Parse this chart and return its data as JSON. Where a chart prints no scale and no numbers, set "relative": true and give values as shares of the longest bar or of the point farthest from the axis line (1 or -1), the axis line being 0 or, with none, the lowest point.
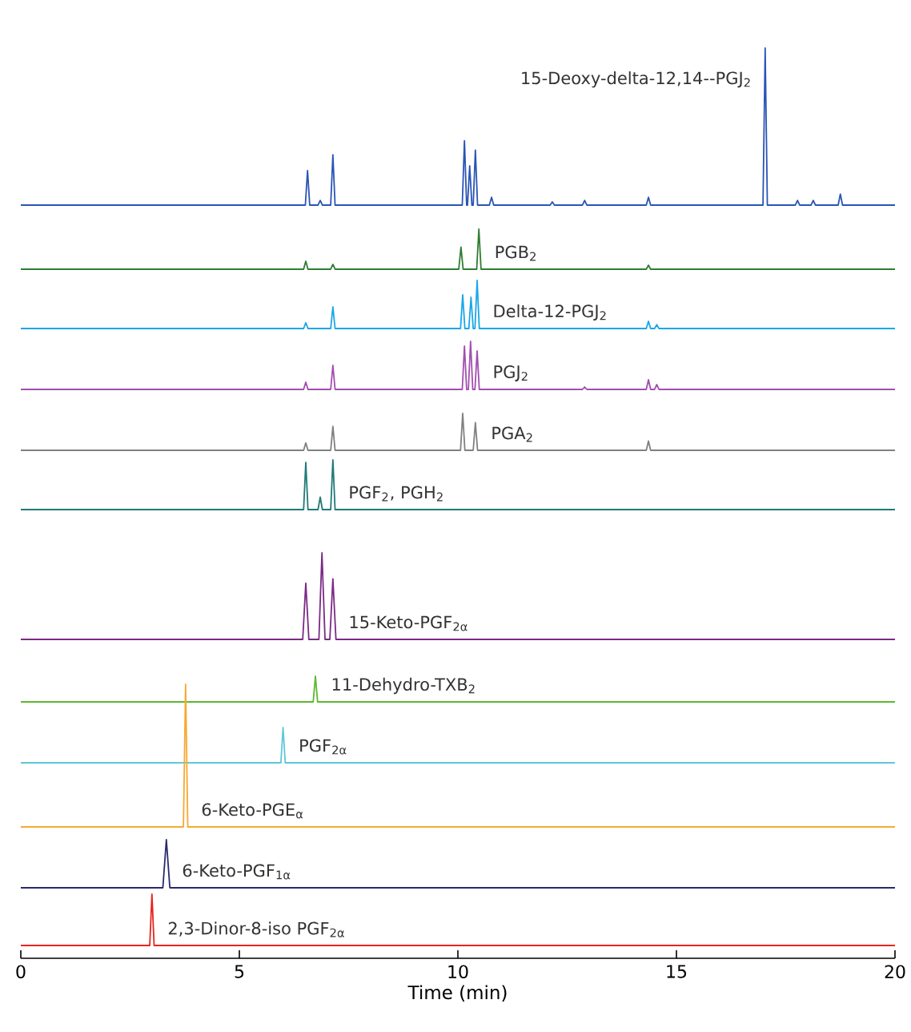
{
  "chart_data": [
    {
      "type": "line",
      "relative": true,
      "tick_labels": false,
      "xlim": [
        0,
        20
      ],
      "series": [
        {
          "name": "15-Deoxy-delta-12,14--PGJ$_{2}$",
          "color": "#2a55b5",
          "x": [
            0,
            6.51,
            6.56,
            6.61,
            6.8,
            6.85,
            6.9,
            7.09,
            7.14,
            7.19,
            10.1,
            10.15,
            10.2,
            10.22,
            10.27,
            10.32,
            10.35,
            10.4,
            10.45,
            10.72,
            10.77,
            10.82,
            12.11,
            12.16,
            12.21,
            12.85,
            12.9,
            12.95,
            14.31,
            14.36,
            14.41,
            16.98,
            17.03,
            17.08,
            17.72,
            17.77,
            17.82,
            18.08,
            18.13,
            18.18,
            18.7,
            18.75,
            18.8,
            20
          ],
          "values": [
            0,
            0,
            0.22,
            0,
            0,
            0.03,
            0,
            0,
            0.32,
            0,
            0,
            0.41,
            0,
            0,
            0.25,
            0,
            0,
            0.35,
            0,
            0,
            0.05,
            0,
            0,
            0.02,
            0,
            0,
            0.03,
            0,
            0,
            0.05,
            0,
            0,
            1,
            0,
            0,
            0.03,
            0,
            0,
            0.03,
            0,
            0,
            0.07,
            0,
            0
          ]
        }
      ]
    },
    {
      "type": "line",
      "relative": true,
      "tick_labels": false,
      "xlim": [
        0,
        20
      ],
      "series": [
        {
          "name": "PGB$_{2}$",
          "color": "#2e7d32",
          "x": [
            0,
            6.47,
            6.52,
            6.57,
            7.09,
            7.14,
            7.19,
            10.02,
            10.07,
            10.12,
            10.43,
            10.48,
            10.53,
            14.31,
            14.36,
            14.41,
            20
          ],
          "values": [
            0,
            0,
            0.2,
            0,
            0,
            0.12,
            0,
            0,
            0.55,
            0,
            0,
            1,
            0,
            0,
            0.1,
            0,
            0
          ]
        }
      ]
    },
    {
      "type": "line",
      "relative": true,
      "tick_labels": false,
      "xlim": [
        0,
        20
      ],
      "series": [
        {
          "name": "Delta-12-PGJ$_{2}$",
          "color": "#1aa7e8",
          "x": [
            0,
            6.47,
            6.52,
            6.57,
            7.09,
            7.14,
            7.19,
            10.06,
            10.11,
            10.16,
            10.25,
            10.3,
            10.35,
            10.39,
            10.44,
            10.49,
            14.31,
            14.36,
            14.41,
            14.5,
            14.55,
            14.6,
            20
          ],
          "values": [
            0,
            0,
            0.12,
            0,
            0,
            0.45,
            0,
            0,
            0.7,
            0,
            0,
            0.65,
            0,
            0,
            1,
            0,
            0,
            0.15,
            0,
            0,
            0.08,
            0,
            0
          ]
        }
      ]
    },
    {
      "type": "line",
      "relative": true,
      "tick_labels": false,
      "xlim": [
        0,
        20
      ],
      "series": [
        {
          "name": "PGJ$_{2}$",
          "color": "#a24fb0",
          "x": [
            0,
            6.47,
            6.52,
            6.57,
            7.09,
            7.14,
            7.19,
            10.1,
            10.15,
            10.2,
            10.24,
            10.29,
            10.34,
            10.39,
            10.44,
            10.49,
            12.85,
            12.9,
            12.95,
            14.31,
            14.36,
            14.41,
            14.5,
            14.55,
            14.6,
            20
          ],
          "values": [
            0,
            0,
            0.15,
            0,
            0,
            0.5,
            0,
            0,
            0.9,
            0,
            0,
            1,
            0,
            0,
            0.8,
            0,
            0,
            0.05,
            0,
            0,
            0.2,
            0,
            0,
            0.1,
            0,
            0
          ]
        }
      ]
    },
    {
      "type": "line",
      "relative": true,
      "tick_labels": false,
      "xlim": [
        0,
        20
      ],
      "series": [
        {
          "name": "PGA$_{2}$",
          "color": "#808080",
          "x": [
            0,
            6.47,
            6.52,
            6.57,
            7.09,
            7.14,
            7.19,
            10.06,
            10.11,
            10.16,
            10.35,
            10.4,
            10.45,
            14.31,
            14.36,
            14.41,
            20
          ],
          "values": [
            0,
            0,
            0.2,
            0,
            0,
            0.65,
            0,
            0,
            1,
            0,
            0,
            0.75,
            0,
            0,
            0.25,
            0,
            0
          ]
        }
      ]
    },
    {
      "type": "line",
      "relative": true,
      "tick_labels": false,
      "xlim": [
        0,
        20
      ],
      "series": [
        {
          "name": "PGF$_{2}$, PGH$_{2}$",
          "color": "#1f7a78",
          "x": [
            0,
            6.47,
            6.52,
            6.57,
            6.8,
            6.85,
            6.9,
            7.09,
            7.14,
            7.19,
            20
          ],
          "values": [
            0,
            0,
            0.95,
            0,
            0,
            0.25,
            0,
            0,
            1,
            0,
            0
          ]
        }
      ]
    },
    {
      "type": "line",
      "relative": true,
      "tick_labels": false,
      "xlim": [
        0,
        20
      ],
      "series": [
        {
          "name": "15-Keto-PGF$_{2α}$",
          "color": "#7b2a85",
          "x": [
            0,
            6.45,
            6.52,
            6.59,
            6.82,
            6.89,
            6.96,
            7.07,
            7.14,
            7.21,
            20
          ],
          "values": [
            0,
            0,
            0.65,
            0,
            0,
            1,
            0,
            0,
            0.7,
            0,
            0
          ]
        }
      ]
    },
    {
      "type": "line",
      "relative": true,
      "tick_labels": false,
      "xlim": [
        0,
        20
      ],
      "series": [
        {
          "name": "11-Dehydro-TXB$_{2}$",
          "color": "#5cb82e",
          "x": [
            0,
            6.69,
            6.74,
            6.79,
            20
          ],
          "values": [
            0,
            0,
            1,
            0,
            0
          ]
        }
      ]
    },
    {
      "type": "line",
      "relative": true,
      "tick_labels": false,
      "xlim": [
        0,
        20
      ],
      "series": [
        {
          "name": "PGF$_{2α}$",
          "color": "#5ec8d6",
          "x": [
            0,
            5.95,
            6.0,
            6.05,
            20
          ],
          "values": [
            0,
            0,
            1,
            0,
            0
          ]
        }
      ]
    },
    {
      "type": "line",
      "relative": true,
      "tick_labels": false,
      "xlim": [
        0,
        20
      ],
      "series": [
        {
          "name": "6-Keto-PGE$_{α}$",
          "color": "#f7a833",
          "x": [
            0,
            3.72,
            3.77,
            3.82,
            20
          ],
          "values": [
            0,
            0,
            1,
            0,
            0
          ]
        }
      ]
    },
    {
      "type": "line",
      "relative": true,
      "tick_labels": false,
      "xlim": [
        0,
        20
      ],
      "series": [
        {
          "name": "6-Keto-PGF$_{1α}$",
          "color": "#2a2a6e",
          "x": [
            0,
            3.25,
            3.33,
            3.41,
            20
          ],
          "values": [
            0,
            0,
            1,
            0,
            0
          ]
        }
      ]
    },
    {
      "type": "line",
      "relative": true,
      "tick_labels": "x",
      "xlim": [
        0,
        20
      ],
      "xticks": [
        0,
        5,
        10,
        15,
        20
      ],
      "xlabel": "Time (min)",
      "series": [
        {
          "name": "2,3-Dinor-8-iso PGF$_{2α}$",
          "color": "#e8241f",
          "x": [
            0,
            2.95,
            3.0,
            3.05,
            20
          ],
          "values": [
            0,
            0,
            1,
            0,
            0
          ]
        }
      ]
    }
  ]
}
